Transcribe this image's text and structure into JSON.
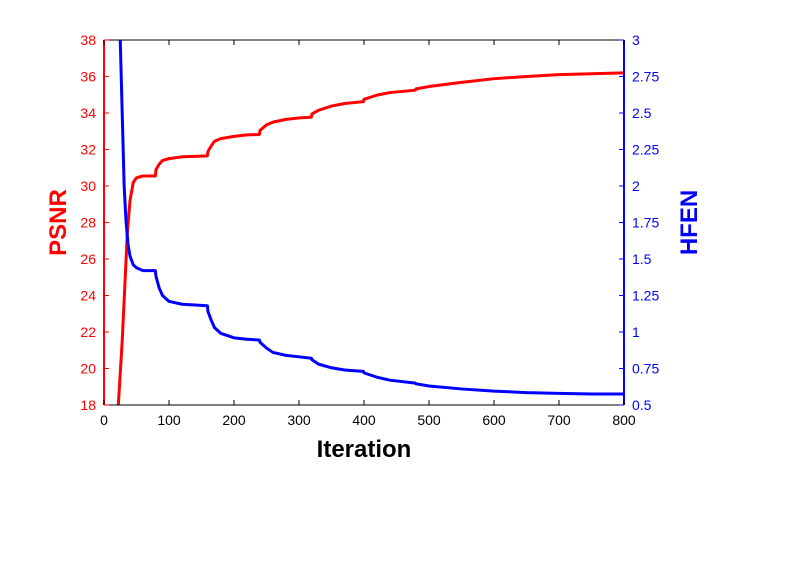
{
  "chart_data": {
    "type": "line",
    "xlabel": "Iteration",
    "ylabel_left": "PSNR",
    "ylabel_right": "HFEN",
    "xlim": [
      0,
      800
    ],
    "ylim_left": [
      18,
      38
    ],
    "ylim_right": [
      0.5,
      3
    ],
    "x_ticks": [
      "0",
      "100",
      "200",
      "300",
      "400",
      "500",
      "600",
      "700",
      "800"
    ],
    "y_left_ticks": [
      "18",
      "20",
      "22",
      "24",
      "26",
      "28",
      "30",
      "32",
      "34",
      "36",
      "38"
    ],
    "y_right_ticks": [
      "0.5",
      "0.75",
      "1",
      "1.25",
      "1.5",
      "1.75",
      "2",
      "2.25",
      "2.5",
      "2.75",
      "3"
    ],
    "grid": false,
    "colors": {
      "left": "#ff0000",
      "right": "#0000ff",
      "axis": "#000000"
    },
    "series": [
      {
        "axis": "left",
        "color": "#ff0000",
        "x": [
          22,
          28,
          32,
          36,
          40,
          45,
          50,
          55,
          60,
          70,
          79,
          80,
          85,
          90,
          100,
          120,
          140,
          159,
          160,
          165,
          170,
          180,
          200,
          220,
          239,
          240,
          250,
          260,
          280,
          300,
          319,
          320,
          330,
          350,
          370,
          399,
          400,
          420,
          440,
          479,
          480,
          500,
          550,
          600,
          650,
          700,
          750,
          800
        ],
        "y": [
          18,
          21.5,
          24.5,
          27.5,
          29.2,
          30.2,
          30.45,
          30.5,
          30.55,
          30.55,
          30.55,
          30.9,
          31.2,
          31.4,
          31.5,
          31.6,
          31.62,
          31.65,
          31.9,
          32.2,
          32.45,
          32.6,
          32.72,
          32.8,
          32.82,
          33.05,
          33.35,
          33.5,
          33.65,
          33.73,
          33.77,
          33.95,
          34.15,
          34.38,
          34.52,
          34.62,
          34.75,
          34.98,
          35.12,
          35.25,
          35.32,
          35.45,
          35.68,
          35.88,
          36.0,
          36.1,
          36.15,
          36.2
        ]
      },
      {
        "axis": "right",
        "color": "#0000ff",
        "x": [
          25,
          28,
          31,
          34,
          37,
          40,
          45,
          50,
          55,
          60,
          70,
          79,
          80,
          85,
          90,
          100,
          120,
          140,
          159,
          160,
          165,
          170,
          180,
          200,
          220,
          239,
          240,
          250,
          260,
          280,
          300,
          319,
          320,
          330,
          350,
          370,
          399,
          400,
          420,
          440,
          479,
          480,
          500,
          550,
          600,
          650,
          700,
          750,
          800
        ],
        "y": [
          3.0,
          2.5,
          2.0,
          1.75,
          1.6,
          1.52,
          1.46,
          1.44,
          1.43,
          1.42,
          1.42,
          1.42,
          1.38,
          1.3,
          1.25,
          1.21,
          1.19,
          1.185,
          1.18,
          1.14,
          1.08,
          1.03,
          0.99,
          0.96,
          0.95,
          0.945,
          0.93,
          0.89,
          0.86,
          0.84,
          0.83,
          0.82,
          0.81,
          0.78,
          0.755,
          0.74,
          0.73,
          0.72,
          0.69,
          0.67,
          0.65,
          0.645,
          0.63,
          0.61,
          0.595,
          0.585,
          0.58,
          0.575,
          0.575
        ]
      }
    ]
  }
}
